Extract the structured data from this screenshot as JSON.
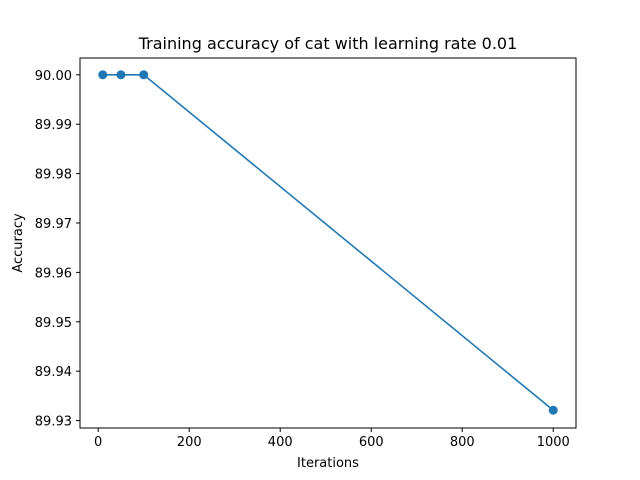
{
  "chart_data": {
    "type": "line",
    "title": "Training accuracy of cat with learning rate 0.01",
    "xlabel": "Iterations",
    "ylabel": "Accuracy",
    "xlim": [
      -40,
      1050
    ],
    "ylim": [
      89.9285,
      90.0034
    ],
    "xticks": [
      0,
      200,
      400,
      600,
      800,
      1000
    ],
    "xtick_labels": [
      "0",
      "200",
      "400",
      "600",
      "800",
      "1000"
    ],
    "yticks": [
      89.93,
      89.94,
      89.95,
      89.96,
      89.97,
      89.98,
      89.99,
      90.0
    ],
    "ytick_labels": [
      "89.93",
      "89.94",
      "89.95",
      "89.96",
      "89.97",
      "89.98",
      "89.99",
      "90.00"
    ],
    "grid": false,
    "series": [
      {
        "x": [
          10,
          50,
          100,
          1000
        ],
        "y": [
          90.0,
          90.0,
          90.0,
          89.9321
        ],
        "color": "#1f77b4",
        "marker": "circle"
      }
    ]
  }
}
